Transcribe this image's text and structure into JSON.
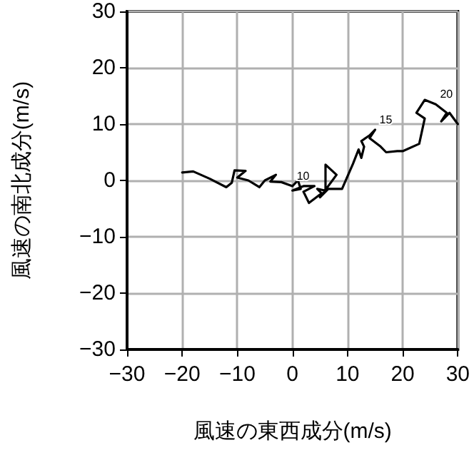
{
  "chart_data": {
    "type": "line",
    "xlabel": "風速の東西成分(m/s)",
    "ylabel": "風速の南北成分(m/s)",
    "x": [
      -20,
      -18,
      -15,
      -12,
      -11,
      -10.5,
      -8.5,
      -10,
      -8,
      -6,
      -5,
      -3,
      -4,
      -2,
      0,
      1,
      1.5,
      0,
      2,
      4,
      2,
      3,
      5,
      5.5,
      4.5,
      6,
      6,
      8,
      6.5,
      5,
      6.5,
      9,
      11,
      12,
      12.5,
      13,
      12.5,
      14,
      15,
      14,
      16,
      17,
      19,
      20,
      23,
      24,
      22.5,
      24,
      26,
      28,
      27,
      28.5,
      30
    ],
    "series": [
      {
        "color": "#000000",
        "values": [
          1.4,
          1.6,
          0.3,
          -1.2,
          -0.4,
          1.8,
          1.7,
          0.5,
          0,
          -1.2,
          0,
          1,
          -0.2,
          -0.3,
          -1,
          0,
          -1.5,
          -1.8,
          -1,
          -1,
          -2,
          -4,
          -2.5,
          -2.5,
          -1.5,
          -1.8,
          2.8,
          1,
          -1,
          -3,
          -1.5,
          -1.5,
          3,
          5.5,
          4,
          6,
          7,
          8,
          9,
          7.5,
          6,
          5,
          5.2,
          5.2,
          6.5,
          11,
          12,
          14.3,
          13.5,
          12,
          10.5,
          12,
          10
        ]
      }
    ],
    "xlim": [
      -30,
      30
    ],
    "ylim": [
      -30,
      30
    ],
    "xticks": [
      -30,
      -20,
      -10,
      0,
      10,
      20,
      30
    ],
    "yticks": [
      -30,
      -20,
      -10,
      0,
      10,
      20,
      30
    ],
    "grid": true,
    "marker": "none",
    "line_style": "solid",
    "annotations": [
      {
        "text": "10",
        "x": 0,
        "y": -1
      },
      {
        "text": "15",
        "x": 15,
        "y": 9
      },
      {
        "text": "20",
        "x": 26,
        "y": 13.5
      }
    ]
  }
}
